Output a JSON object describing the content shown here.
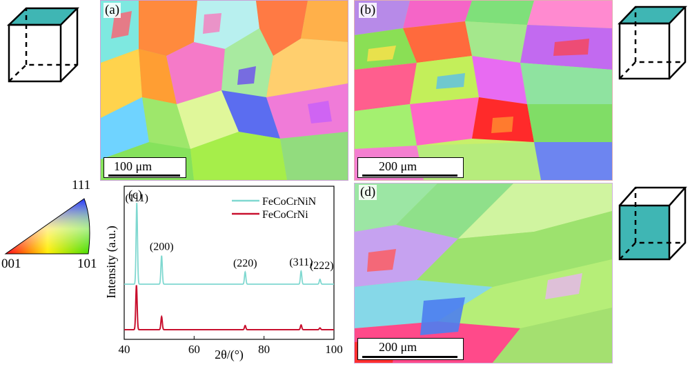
{
  "panels": {
    "a": {
      "label": "(a)",
      "scale": "100 μm"
    },
    "b": {
      "label": "(b)",
      "scale": "200 μm"
    },
    "c": {
      "label": "(c)"
    },
    "d": {
      "label": "(d)",
      "scale": "200 μm"
    }
  },
  "ipf_legend": {
    "top": "111",
    "left": "001",
    "right": "101"
  },
  "colors": {
    "cube_face": "#3fb6b4",
    "series_n": "#7fd8d0",
    "series_base": "#c8102e"
  },
  "chart_data": {
    "type": "line",
    "xlabel": "2θ/(°)",
    "ylabel": "Intensity (a.u.)",
    "xlim": [
      40,
      100
    ],
    "xticks": [
      40,
      60,
      80,
      100
    ],
    "legend_position": "top-right",
    "series": [
      {
        "name": "FeCoCrNiN",
        "offset": 0.45,
        "peaks": [
          {
            "x": 43.6,
            "y": 1.0
          },
          {
            "x": 50.7,
            "y": 0.35
          },
          {
            "x": 74.6,
            "y": 0.15
          },
          {
            "x": 90.6,
            "y": 0.16
          },
          {
            "x": 96.0,
            "y": 0.06
          }
        ]
      },
      {
        "name": "FeCoCrNi",
        "offset": 0.0,
        "peaks": [
          {
            "x": 43.5,
            "y": 0.75
          },
          {
            "x": 50.7,
            "y": 0.22
          },
          {
            "x": 74.6,
            "y": 0.07
          },
          {
            "x": 90.6,
            "y": 0.08
          },
          {
            "x": 96.0,
            "y": 0.03
          }
        ]
      }
    ],
    "annotations": [
      {
        "text": "(111)",
        "x": 43.6
      },
      {
        "text": "(200)",
        "x": 50.7
      },
      {
        "text": "(220)",
        "x": 74.6
      },
      {
        "text": "(311)",
        "x": 90.6
      },
      {
        "text": "(222)",
        "x": 96.5
      }
    ]
  }
}
